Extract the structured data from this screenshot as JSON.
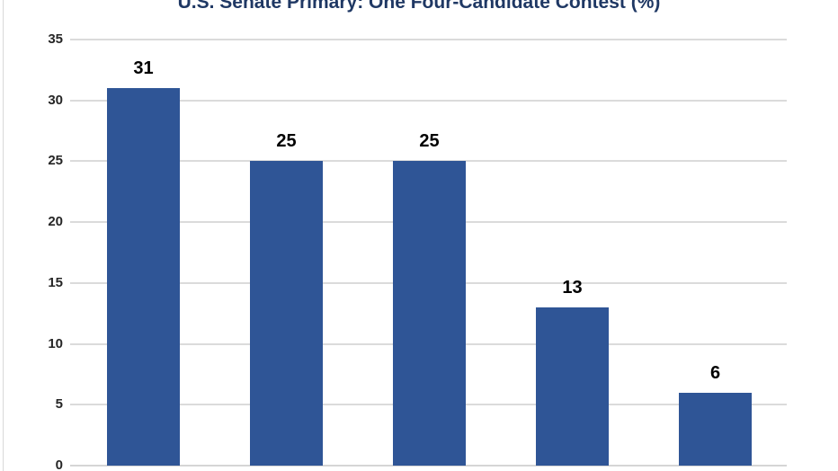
{
  "chart_data": {
    "type": "bar",
    "title": "U.S. Senate Primary: One Four-Candidate Contest (%)",
    "values": [
      31,
      25,
      25,
      13,
      6
    ],
    "categories": [
      "",
      "",
      "",
      "",
      ""
    ],
    "ylim": [
      0,
      35
    ],
    "yticks": [
      0,
      5,
      10,
      15,
      20,
      25,
      30,
      35
    ],
    "grid": true,
    "legend": "none",
    "x_axis_labels_visible": false,
    "colors": {
      "bar": "#2F5596",
      "gridline": "#DBDBDB",
      "axis_line": "#D5D5D5",
      "axis_tick_label": "#262626",
      "data_label": "#000000",
      "title": "#1F3864",
      "chart_left_border": "#D9D9D9",
      "background": "#FFFFFF"
    }
  }
}
